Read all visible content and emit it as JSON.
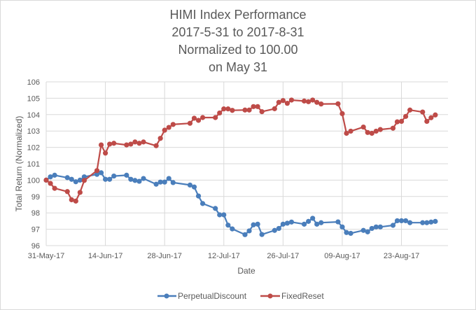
{
  "chart_data": {
    "type": "line",
    "title": [
      "HIMI Index Performance",
      "2017-5-31 to 2017-8-31",
      "Normalized to 100.00",
      "on May 31"
    ],
    "xlabel": "Date",
    "ylabel": "Total Return (Normalized)",
    "ylim": [
      96,
      106
    ],
    "yticks": [
      96,
      97,
      98,
      99,
      100,
      101,
      102,
      103,
      104,
      105,
      106
    ],
    "xlim": [
      "2017-05-31",
      "2017-09-03"
    ],
    "xticks": [
      {
        "date": "2017-05-31",
        "label": "31-May-17"
      },
      {
        "date": "2017-06-14",
        "label": "14-Jun-17"
      },
      {
        "date": "2017-06-28",
        "label": "28-Jun-17"
      },
      {
        "date": "2017-07-12",
        "label": "12-Jul-17"
      },
      {
        "date": "2017-07-26",
        "label": "26-Jul-17"
      },
      {
        "date": "2017-08-09",
        "label": "09-Aug-17"
      },
      {
        "date": "2017-08-23",
        "label": "23-Aug-17"
      }
    ],
    "grid": true,
    "legend_position": "bottom",
    "x": [
      "2017-05-31",
      "2017-06-01",
      "2017-06-02",
      "2017-06-05",
      "2017-06-06",
      "2017-06-07",
      "2017-06-08",
      "2017-06-09",
      "2017-06-12",
      "2017-06-13",
      "2017-06-14",
      "2017-06-15",
      "2017-06-16",
      "2017-06-19",
      "2017-06-20",
      "2017-06-21",
      "2017-06-22",
      "2017-06-23",
      "2017-06-26",
      "2017-06-27",
      "2017-06-28",
      "2017-06-29",
      "2017-06-30",
      "2017-07-04",
      "2017-07-05",
      "2017-07-06",
      "2017-07-07",
      "2017-07-10",
      "2017-07-11",
      "2017-07-12",
      "2017-07-13",
      "2017-07-14",
      "2017-07-17",
      "2017-07-18",
      "2017-07-19",
      "2017-07-20",
      "2017-07-21",
      "2017-07-24",
      "2017-07-25",
      "2017-07-26",
      "2017-07-27",
      "2017-07-28",
      "2017-07-31",
      "2017-08-01",
      "2017-08-02",
      "2017-08-03",
      "2017-08-04",
      "2017-08-08",
      "2017-08-09",
      "2017-08-10",
      "2017-08-11",
      "2017-08-14",
      "2017-08-15",
      "2017-08-16",
      "2017-08-17",
      "2017-08-18",
      "2017-08-21",
      "2017-08-22",
      "2017-08-23",
      "2017-08-24",
      "2017-08-25",
      "2017-08-28",
      "2017-08-29",
      "2017-08-30",
      "2017-08-31"
    ],
    "series": [
      {
        "name": "PerpetualDiscount",
        "color": "#4a7ebb",
        "values": [
          100.0,
          100.2,
          100.3,
          100.15,
          100.05,
          99.9,
          100.0,
          100.2,
          100.35,
          100.45,
          100.05,
          100.05,
          100.25,
          100.3,
          100.05,
          99.98,
          99.93,
          100.1,
          99.75,
          99.88,
          99.88,
          100.1,
          99.85,
          99.7,
          99.58,
          99.03,
          98.57,
          98.27,
          97.88,
          97.88,
          97.25,
          97.02,
          96.67,
          96.9,
          97.27,
          97.31,
          96.68,
          96.93,
          97.05,
          97.31,
          97.37,
          97.44,
          97.31,
          97.48,
          97.67,
          97.31,
          97.4,
          97.45,
          97.14,
          96.8,
          96.75,
          96.93,
          96.84,
          97.05,
          97.14,
          97.14,
          97.24,
          97.52,
          97.52,
          97.52,
          97.4,
          97.4,
          97.4,
          97.44,
          97.48
        ]
      },
      {
        "name": "FixedReset",
        "color": "#be4b48",
        "values": [
          100.0,
          99.8,
          99.5,
          99.3,
          98.8,
          98.72,
          99.25,
          99.98,
          100.58,
          102.15,
          101.65,
          102.2,
          102.25,
          102.15,
          102.2,
          102.33,
          102.25,
          102.33,
          102.1,
          102.55,
          103.05,
          103.22,
          103.4,
          103.47,
          103.78,
          103.65,
          103.82,
          103.82,
          104.1,
          104.35,
          104.35,
          104.26,
          104.28,
          104.28,
          104.49,
          104.49,
          104.18,
          104.36,
          104.75,
          104.86,
          104.69,
          104.89,
          104.83,
          104.79,
          104.89,
          104.75,
          104.65,
          104.66,
          104.06,
          102.86,
          102.99,
          103.24,
          102.91,
          102.86,
          102.99,
          103.09,
          103.17,
          103.56,
          103.59,
          103.89,
          104.28,
          104.16,
          103.59,
          103.81,
          103.98
        ]
      }
    ]
  }
}
